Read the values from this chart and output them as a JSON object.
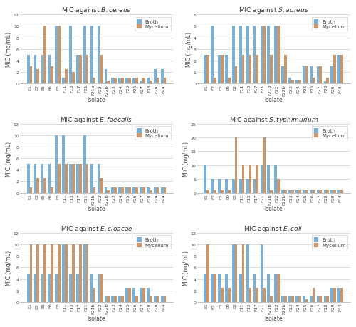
{
  "isolates": [
    "E1",
    "E2",
    "E5",
    "E6",
    "E8",
    "F11",
    "F13",
    "F17",
    "F21",
    "F21b",
    "F22",
    "F22b",
    "F23",
    "F24",
    "F25",
    "F26",
    "F27",
    "F28",
    "F29",
    "F44"
  ],
  "panels": [
    {
      "title": "MIC against $\\it{B.cereus}$",
      "ylim": [
        0,
        12
      ],
      "yticks": [
        0,
        2,
        4,
        6,
        8,
        10,
        12
      ],
      "broth": [
        5,
        5,
        5,
        5,
        10,
        1,
        10,
        5,
        10,
        10,
        10,
        2.5,
        1,
        1,
        1,
        1,
        0.5,
        1,
        2.5,
        2.5
      ],
      "mycelium": [
        3,
        2.5,
        10,
        3,
        10,
        2.5,
        2,
        5,
        5,
        1,
        5,
        0.5,
        1,
        1,
        1,
        1,
        1,
        0.5,
        1,
        1
      ]
    },
    {
      "title": "MIC against $\\it{S.aureus}$",
      "ylim": [
        0,
        6
      ],
      "yticks": [
        0,
        1,
        2,
        3,
        4,
        5,
        6
      ],
      "broth": [
        2.5,
        5,
        2.5,
        2.5,
        5,
        5,
        5,
        5,
        5,
        5,
        5,
        1.5,
        0.5,
        0.3,
        1.5,
        1.5,
        1.5,
        0.2,
        1.5,
        2.5
      ],
      "mycelium": [
        2.5,
        0.5,
        2.5,
        0.5,
        1.5,
        2.5,
        2.5,
        2.5,
        5,
        2.5,
        5,
        2.5,
        0.3,
        0.3,
        1.5,
        0.5,
        1.5,
        0.5,
        2.5,
        2.5
      ]
    },
    {
      "title": "MIC against $\\it{E.faecalis}$",
      "ylim": [
        0,
        12
      ],
      "yticks": [
        0,
        2,
        4,
        6,
        8,
        10,
        12
      ],
      "broth": [
        5,
        5,
        5,
        5,
        10,
        10,
        5,
        5,
        10,
        5,
        5,
        1,
        1,
        1,
        1,
        1,
        1,
        1,
        1,
        1
      ],
      "mycelium": [
        1,
        2.5,
        2.5,
        1,
        5,
        5,
        5,
        5,
        5,
        1,
        2.5,
        0.5,
        1,
        1,
        1,
        1,
        1,
        0.5,
        1,
        1
      ]
    },
    {
      "title": "MIC against $\\it{S.typhimurium}$",
      "ylim": [
        0,
        25
      ],
      "yticks": [
        0,
        5,
        10,
        15,
        20,
        25
      ],
      "broth": [
        10,
        5,
        5,
        5,
        5,
        5,
        5,
        5,
        10,
        10,
        10,
        1,
        1,
        1,
        1,
        1,
        1,
        1,
        1,
        1
      ],
      "mycelium": [
        1,
        1,
        1,
        1,
        20,
        10,
        10,
        10,
        20,
        1,
        5,
        1,
        1,
        1,
        1,
        1,
        1,
        1,
        1,
        1
      ]
    },
    {
      "title": "MIC against $\\it{E.cloacae}$",
      "ylim": [
        0,
        12
      ],
      "yticks": [
        0,
        2,
        4,
        6,
        8,
        10,
        12
      ],
      "broth": [
        5,
        5,
        5,
        5,
        5,
        10,
        5,
        5,
        10,
        5,
        5,
        1,
        1,
        1,
        2.5,
        2.5,
        2.5,
        2.5,
        1,
        1
      ],
      "mycelium": [
        10,
        10,
        10,
        10,
        10,
        10,
        10,
        10,
        10,
        2.5,
        5,
        1,
        1,
        1,
        2.5,
        1,
        2.5,
        1,
        1,
        1
      ]
    },
    {
      "title": "MIC against $\\it{E.coli}$",
      "ylim": [
        0,
        12
      ],
      "yticks": [
        0,
        2,
        4,
        6,
        8,
        10,
        12
      ],
      "broth": [
        5,
        5,
        5,
        5,
        10,
        5,
        10,
        5,
        10,
        5,
        5,
        1,
        1,
        1,
        1,
        1,
        1,
        1,
        2.5,
        2.5
      ],
      "mycelium": [
        10,
        5,
        2.5,
        2.5,
        10,
        10,
        2.5,
        2.5,
        2.5,
        1,
        5,
        1,
        1,
        1,
        0.5,
        2.5,
        1,
        1,
        2.5,
        2.5
      ]
    }
  ],
  "broth_color": "#7ab0d4",
  "mycelium_color": "#c9956a",
  "ylabel": "MIC (mg/mL)",
  "xlabel": "Isolate",
  "bg_color": "#ffffff",
  "title_fontsize": 6.5,
  "axis_fontsize": 5.5,
  "tick_fontsize": 4.5,
  "legend_fontsize": 5,
  "bar_width": 0.38,
  "grid_color": "#d0d0d0",
  "spine_color": "#aaaaaa"
}
